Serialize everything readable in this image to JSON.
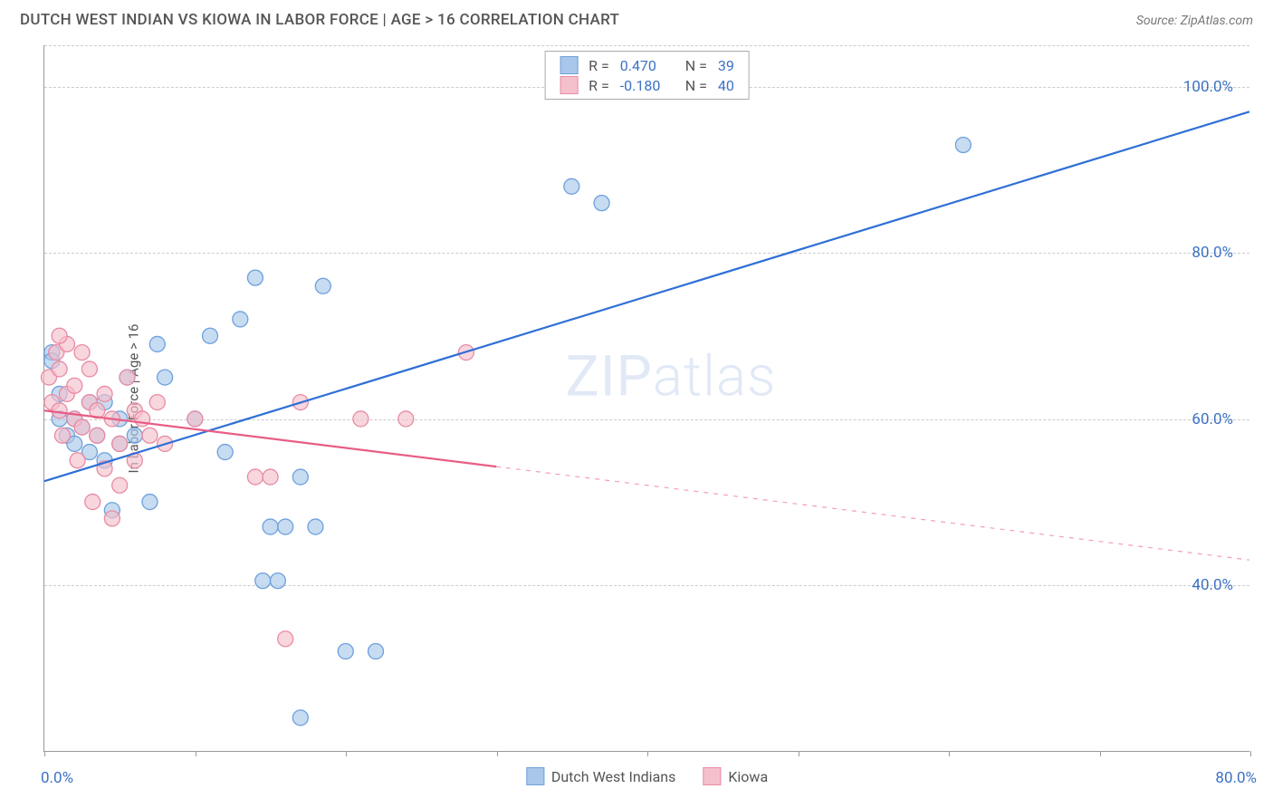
{
  "header": {
    "title": "DUTCH WEST INDIAN VS KIOWA IN LABOR FORCE | AGE > 16 CORRELATION CHART",
    "source": "Source: ZipAtlas.com"
  },
  "watermark": {
    "part1": "ZIP",
    "part2": "atlas"
  },
  "chart": {
    "type": "scatter",
    "ylabel": "In Labor Force | Age > 16",
    "background_color": "#ffffff",
    "grid_color": "#cccccc",
    "axis_color": "#999999",
    "tick_label_color": "#3b72c4",
    "label_fontsize": 15,
    "tick_fontsize": 17,
    "xlim": [
      0,
      80
    ],
    "ylim": [
      20,
      105
    ],
    "yticks": [
      {
        "v": 40,
        "label": "40.0%"
      },
      {
        "v": 60,
        "label": "60.0%"
      },
      {
        "v": 80,
        "label": "80.0%"
      },
      {
        "v": 100,
        "label": "100.0%"
      }
    ],
    "xtick_positions": [
      0,
      10,
      20,
      30,
      40,
      50,
      60,
      70,
      80
    ],
    "xtick_labels": {
      "min": "0.0%",
      "max": "80.0%"
    },
    "series": [
      {
        "name": "Dutch West Indians",
        "color_fill": "#a9c7ea",
        "color_stroke": "#6da1dd",
        "line_color": "#2e6fd6",
        "marker_radius": 8.5,
        "fill_opacity": 0.65,
        "line_width": 2.2,
        "R": "0.470",
        "N": "39",
        "regression": {
          "x1": 0,
          "y1": 52.5,
          "x2": 80,
          "y2": 97,
          "dash_after_x": 80
        },
        "points": [
          [
            0.5,
            68
          ],
          [
            0.5,
            67
          ],
          [
            1,
            63
          ],
          [
            1,
            60
          ],
          [
            1.5,
            58
          ],
          [
            2,
            57
          ],
          [
            2,
            60
          ],
          [
            2.5,
            59
          ],
          [
            3,
            62
          ],
          [
            3,
            56
          ],
          [
            3.5,
            58
          ],
          [
            4,
            55
          ],
          [
            4,
            62
          ],
          [
            4.5,
            49
          ],
          [
            5,
            60
          ],
          [
            5,
            57
          ],
          [
            5.5,
            65
          ],
          [
            6,
            58
          ],
          [
            7,
            50
          ],
          [
            7.5,
            69
          ],
          [
            8,
            65
          ],
          [
            10,
            60
          ],
          [
            11,
            70
          ],
          [
            12,
            56
          ],
          [
            13,
            72
          ],
          [
            14,
            77
          ],
          [
            14.5,
            40.5
          ],
          [
            15,
            47
          ],
          [
            15.5,
            40.5
          ],
          [
            16,
            47
          ],
          [
            17,
            53
          ],
          [
            17,
            24
          ],
          [
            18,
            47
          ],
          [
            18.5,
            76
          ],
          [
            20,
            32
          ],
          [
            22,
            32
          ],
          [
            35,
            88
          ],
          [
            37,
            86
          ],
          [
            61,
            93
          ]
        ]
      },
      {
        "name": "Kiowa",
        "color_fill": "#f4c0cc",
        "color_stroke": "#e88ba3",
        "line_color": "#e85d85",
        "marker_radius": 8.5,
        "fill_opacity": 0.65,
        "line_width": 2.2,
        "R": "-0.180",
        "N": "40",
        "regression": {
          "x1": 0,
          "y1": 61,
          "x2": 80,
          "y2": 43,
          "dash_after_x": 30
        },
        "points": [
          [
            0.3,
            65
          ],
          [
            0.5,
            62
          ],
          [
            0.8,
            68
          ],
          [
            1,
            61
          ],
          [
            1,
            66
          ],
          [
            1.2,
            58
          ],
          [
            1.5,
            63
          ],
          [
            1.5,
            69
          ],
          [
            2,
            60
          ],
          [
            2,
            64
          ],
          [
            2.2,
            55
          ],
          [
            2.5,
            68
          ],
          [
            2.5,
            59
          ],
          [
            3,
            62
          ],
          [
            3,
            66
          ],
          [
            3.2,
            50
          ],
          [
            3.5,
            58
          ],
          [
            3.5,
            61
          ],
          [
            4,
            54
          ],
          [
            4,
            63
          ],
          [
            4.5,
            48
          ],
          [
            4.5,
            60
          ],
          [
            5,
            57
          ],
          [
            5,
            52
          ],
          [
            5.5,
            65
          ],
          [
            6,
            61
          ],
          [
            6,
            55
          ],
          [
            6.5,
            60
          ],
          [
            7,
            58
          ],
          [
            7.5,
            62
          ],
          [
            8,
            57
          ],
          [
            10,
            60
          ],
          [
            14,
            53
          ],
          [
            15,
            53
          ],
          [
            16,
            33.5
          ],
          [
            17,
            62
          ],
          [
            21,
            60
          ],
          [
            24,
            60
          ],
          [
            28,
            68
          ],
          [
            1,
            70
          ]
        ]
      }
    ],
    "legend_top": [
      {
        "swatch": 0,
        "r_label": "R =",
        "n_label": "N ="
      },
      {
        "swatch": 1,
        "r_label": "R =",
        "n_label": "N ="
      }
    ],
    "legend_bottom": [
      {
        "swatch": 0,
        "label_key": "series.0.name"
      },
      {
        "swatch": 1,
        "label_key": "series.1.name"
      }
    ]
  }
}
